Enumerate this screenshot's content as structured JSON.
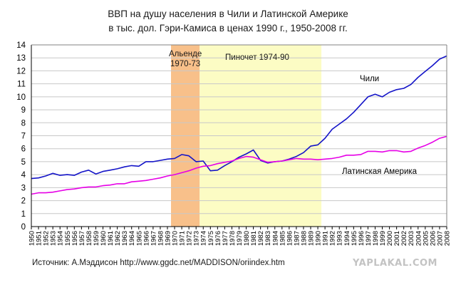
{
  "title_line1": "ВВП на душу населения в Чили и Латинской Америке",
  "title_line2": "в тыс. дол. Гэри-Камиса в ценах 1990 г., 1950-2008 гг.",
  "source": "Источник: А.Мэддисон http://www.ggdc.net/MADDISON/oriindex.htm",
  "watermark": "YAPLAKAL.COM",
  "colors": {
    "chile": "#1414c8",
    "latin_america": "#e600e6",
    "allende_band": "#f8c08a",
    "pinochet_band": "#fcfcc4",
    "grid": "#c8c8c8",
    "axis": "#000000"
  },
  "chart_data": {
    "type": "line",
    "title": "ВВП на душу населения в Чили и Латинской Америке",
    "subtitle": "в тыс. дол. Гэри-Камиса в ценах 1990 г., 1950-2008 гг.",
    "xlabel": "",
    "ylabel": "",
    "xlim": [
      1950,
      2008
    ],
    "ylim": [
      0,
      14
    ],
    "yticks": [
      0,
      1,
      2,
      3,
      4,
      5,
      6,
      7,
      8,
      9,
      10,
      11,
      12,
      13,
      14
    ],
    "grid": true,
    "legend": "inline-labels",
    "x": [
      1950,
      1951,
      1952,
      1953,
      1954,
      1955,
      1956,
      1957,
      1958,
      1959,
      1960,
      1961,
      1962,
      1963,
      1964,
      1965,
      1966,
      1967,
      1968,
      1969,
      1970,
      1971,
      1972,
      1973,
      1974,
      1975,
      1976,
      1977,
      1978,
      1979,
      1980,
      1981,
      1982,
      1983,
      1984,
      1985,
      1986,
      1987,
      1988,
      1989,
      1990,
      1991,
      1992,
      1993,
      1994,
      1995,
      1996,
      1997,
      1998,
      1999,
      2000,
      2001,
      2002,
      2003,
      2004,
      2005,
      2006,
      2007,
      2008
    ],
    "series": [
      {
        "name": "Чили",
        "color_key": "chile",
        "values": [
          3.7,
          3.75,
          3.9,
          4.1,
          3.95,
          4.0,
          3.95,
          4.2,
          4.35,
          4.05,
          4.25,
          4.35,
          4.45,
          4.6,
          4.7,
          4.65,
          5.0,
          5.0,
          5.1,
          5.2,
          5.25,
          5.55,
          5.45,
          5.0,
          5.05,
          4.3,
          4.35,
          4.7,
          5.0,
          5.35,
          5.6,
          5.9,
          5.1,
          4.9,
          5.0,
          5.05,
          5.2,
          5.4,
          5.7,
          6.2,
          6.3,
          6.8,
          7.5,
          7.9,
          8.3,
          8.8,
          9.4,
          10.0,
          10.2,
          10.0,
          10.35,
          10.55,
          10.65,
          10.95,
          11.5,
          11.95,
          12.4,
          12.9,
          13.15
        ]
      },
      {
        "name": "Латинская Америка",
        "color_key": "latin_america",
        "values": [
          2.5,
          2.6,
          2.6,
          2.65,
          2.75,
          2.85,
          2.9,
          3.0,
          3.05,
          3.05,
          3.15,
          3.2,
          3.3,
          3.3,
          3.45,
          3.5,
          3.55,
          3.65,
          3.75,
          3.9,
          4.0,
          4.15,
          4.3,
          4.5,
          4.65,
          4.7,
          4.85,
          4.95,
          5.05,
          5.25,
          5.4,
          5.35,
          5.15,
          4.95,
          5.0,
          5.05,
          5.15,
          5.25,
          5.2,
          5.2,
          5.15,
          5.2,
          5.25,
          5.35,
          5.5,
          5.5,
          5.55,
          5.8,
          5.8,
          5.75,
          5.85,
          5.85,
          5.75,
          5.8,
          6.05,
          6.25,
          6.5,
          6.8,
          6.95
        ]
      }
    ],
    "annotations": [
      {
        "text": "Альенде",
        "text2": "1970-73",
        "from": 1969.5,
        "to": 1973.5,
        "band_color_key": "allende_band"
      },
      {
        "text": "Пиночет 1974-90",
        "from": 1973.5,
        "to": 1990.5,
        "band_color_key": "pinochet_band"
      }
    ]
  }
}
